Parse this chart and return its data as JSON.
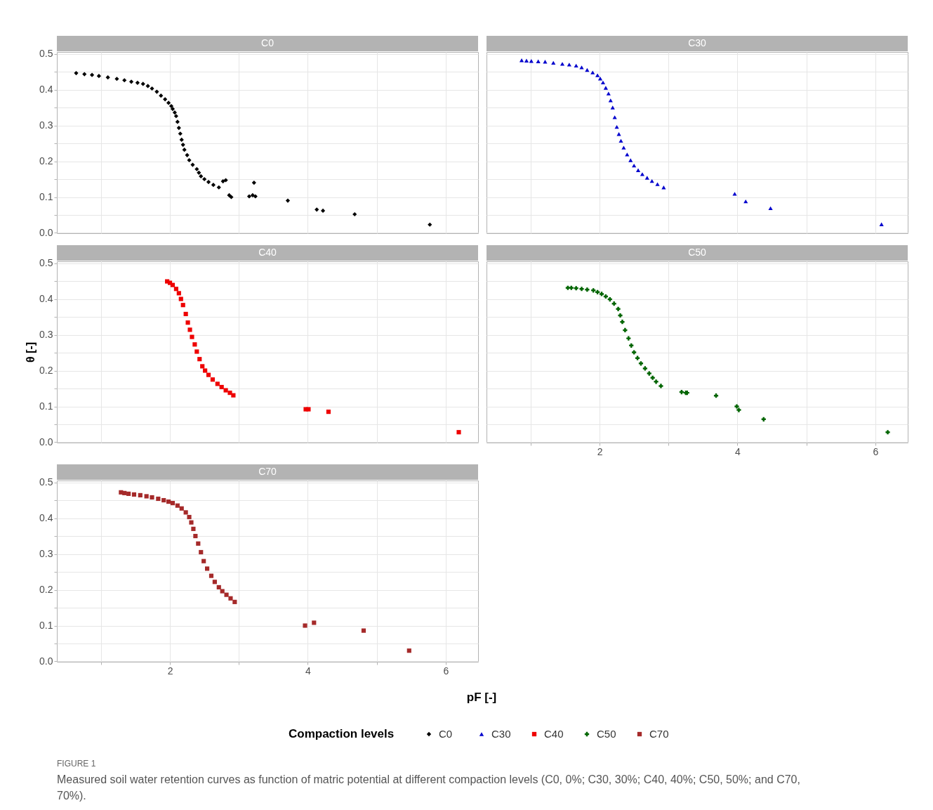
{
  "chart_data": [
    {
      "type": "scatter",
      "title": "C0",
      "marker": "diamond",
      "grid": true,
      "tick_labels": "y",
      "xlim": [
        0.36,
        6.47
      ],
      "ylim": [
        -0.001,
        0.505
      ],
      "xticks": [
        {
          "value": 1,
          "label": null
        },
        2,
        {
          "value": 3,
          "label": null
        },
        4,
        {
          "value": 5,
          "label": null
        },
        6
      ],
      "yticks": [
        {
          "value": 0,
          "label": "0.0"
        },
        {
          "value": 0.05,
          "label": null
        },
        {
          "value": 0.1,
          "label": "0.1"
        },
        {
          "value": 0.15,
          "label": null
        },
        {
          "value": 0.2,
          "label": "0.2"
        },
        {
          "value": 0.25,
          "label": null
        },
        {
          "value": 0.3,
          "label": "0.3"
        },
        {
          "value": 0.35,
          "label": null
        },
        {
          "value": 0.4,
          "label": "0.4"
        },
        {
          "value": 0.45,
          "label": null
        },
        {
          "value": 0.5,
          "label": "0.5"
        }
      ],
      "series": [
        {
          "name": "C0",
          "color": "#000000",
          "x": [
            0.64,
            0.76,
            0.87,
            0.97,
            1.1,
            1.23,
            1.34,
            1.44,
            1.53,
            1.61,
            1.68,
            1.74,
            1.81,
            1.87,
            1.93,
            1.98,
            2.02,
            2.04,
            2.07,
            2.09,
            2.11,
            2.13,
            2.15,
            2.17,
            2.19,
            2.21,
            2.25,
            2.28,
            2.33,
            2.39,
            2.42,
            2.45,
            2.5,
            2.56,
            2.63,
            2.71,
            2.77,
            2.81,
            2.86,
            2.89,
            3.15,
            3.2,
            3.24,
            3.22,
            3.71,
            4.13,
            4.22,
            4.68,
            5.77
          ],
          "values": [
            0.446,
            0.443,
            0.441,
            0.438,
            0.434,
            0.43,
            0.426,
            0.422,
            0.419,
            0.416,
            0.41,
            0.403,
            0.394,
            0.383,
            0.373,
            0.363,
            0.354,
            0.346,
            0.336,
            0.326,
            0.31,
            0.293,
            0.277,
            0.26,
            0.246,
            0.232,
            0.217,
            0.203,
            0.19,
            0.178,
            0.168,
            0.158,
            0.15,
            0.142,
            0.134,
            0.127,
            0.144,
            0.147,
            0.105,
            0.1,
            0.102,
            0.105,
            0.102,
            0.14,
            0.09,
            0.065,
            0.062,
            0.052,
            0.023
          ]
        }
      ]
    },
    {
      "type": "scatter",
      "title": "C30",
      "marker": "triangle",
      "grid": true,
      "tick_labels": false,
      "xlim": [
        0.36,
        6.47
      ],
      "ylim": [
        -0.001,
        0.505
      ],
      "xticks": [
        {
          "value": 1,
          "label": null
        },
        2,
        {
          "value": 3,
          "label": null
        },
        4,
        {
          "value": 5,
          "label": null
        },
        6
      ],
      "yticks": [
        {
          "value": 0,
          "label": null
        },
        {
          "value": 0.05,
          "label": null
        },
        {
          "value": 0.1,
          "label": null
        },
        {
          "value": 0.15,
          "label": null
        },
        {
          "value": 0.2,
          "label": null
        },
        {
          "value": 0.25,
          "label": null
        },
        {
          "value": 0.3,
          "label": null
        },
        {
          "value": 0.35,
          "label": null
        },
        {
          "value": 0.4,
          "label": null
        },
        {
          "value": 0.45,
          "label": null
        },
        {
          "value": 0.5,
          "label": null
        }
      ],
      "series": [
        {
          "name": "C30",
          "color": "#0000cd",
          "x": [
            0.87,
            0.94,
            1.01,
            1.11,
            1.21,
            1.33,
            1.46,
            1.56,
            1.66,
            1.74,
            1.82,
            1.9,
            1.97,
            2.01,
            2.05,
            2.09,
            2.13,
            2.16,
            2.19,
            2.22,
            2.25,
            2.28,
            2.31,
            2.35,
            2.4,
            2.45,
            2.5,
            2.56,
            2.62,
            2.69,
            2.76,
            2.84,
            2.93,
            3.96,
            4.12,
            4.48,
            6.09
          ],
          "values": [
            0.482,
            0.481,
            0.48,
            0.479,
            0.478,
            0.475,
            0.472,
            0.47,
            0.467,
            0.462,
            0.455,
            0.448,
            0.44,
            0.431,
            0.42,
            0.405,
            0.389,
            0.37,
            0.35,
            0.323,
            0.296,
            0.276,
            0.257,
            0.238,
            0.219,
            0.203,
            0.188,
            0.175,
            0.164,
            0.154,
            0.145,
            0.136,
            0.127,
            0.109,
            0.088,
            0.069,
            0.024
          ]
        }
      ]
    },
    {
      "type": "scatter",
      "title": "C40",
      "ylabel": "θ [-]",
      "marker": "square",
      "grid": true,
      "tick_labels": "y",
      "xlim": [
        0.36,
        6.47
      ],
      "ylim": [
        -0.001,
        0.505
      ],
      "xticks": [
        {
          "value": 1,
          "label": null
        },
        2,
        {
          "value": 3,
          "label": null
        },
        4,
        {
          "value": 5,
          "label": null
        },
        6
      ],
      "yticks": [
        {
          "value": 0,
          "label": "0.0"
        },
        {
          "value": 0.05,
          "label": null
        },
        {
          "value": 0.1,
          "label": "0.1"
        },
        {
          "value": 0.15,
          "label": null
        },
        {
          "value": 0.2,
          "label": "0.2"
        },
        {
          "value": 0.25,
          "label": null
        },
        {
          "value": 0.3,
          "label": "0.3"
        },
        {
          "value": 0.35,
          "label": null
        },
        {
          "value": 0.4,
          "label": "0.4"
        },
        {
          "value": 0.45,
          "label": null
        },
        {
          "value": 0.5,
          "label": "0.5"
        }
      ],
      "series": [
        {
          "name": "C40",
          "color": "#ee0000",
          "x": [
            1.96,
            2.0,
            2.04,
            2.09,
            2.13,
            2.16,
            2.19,
            2.23,
            2.26,
            2.29,
            2.32,
            2.36,
            2.39,
            2.43,
            2.47,
            2.51,
            2.56,
            2.62,
            2.69,
            2.75,
            2.81,
            2.87,
            2.92,
            3.97,
            4.01,
            4.3,
            6.19
          ],
          "values": [
            0.449,
            0.445,
            0.439,
            0.428,
            0.416,
            0.4,
            0.383,
            0.358,
            0.334,
            0.314,
            0.294,
            0.273,
            0.253,
            0.232,
            0.212,
            0.2,
            0.188,
            0.175,
            0.163,
            0.154,
            0.145,
            0.138,
            0.131,
            0.092,
            0.092,
            0.085,
            0.028
          ]
        }
      ]
    },
    {
      "type": "scatter",
      "title": "C50",
      "marker": "cross",
      "grid": true,
      "tick_labels": "x",
      "xlim": [
        0.36,
        6.47
      ],
      "ylim": [
        -0.001,
        0.505
      ],
      "xticks": [
        {
          "value": 1,
          "label": null
        },
        2,
        {
          "value": 3,
          "label": null
        },
        4,
        {
          "value": 5,
          "label": null
        },
        6
      ],
      "yticks": [
        {
          "value": 0,
          "label": null
        },
        {
          "value": 0.05,
          "label": null
        },
        {
          "value": 0.1,
          "label": null
        },
        {
          "value": 0.15,
          "label": null
        },
        {
          "value": 0.2,
          "label": null
        },
        {
          "value": 0.25,
          "label": null
        },
        {
          "value": 0.3,
          "label": null
        },
        {
          "value": 0.35,
          "label": null
        },
        {
          "value": 0.4,
          "label": null
        },
        {
          "value": 0.45,
          "label": null
        },
        {
          "value": 0.5,
          "label": null
        }
      ],
      "series": [
        {
          "name": "C50",
          "color": "#006400",
          "x": [
            1.54,
            1.59,
            1.66,
            1.74,
            1.82,
            1.91,
            1.97,
            2.03,
            2.09,
            2.15,
            2.21,
            2.27,
            2.3,
            2.33,
            2.37,
            2.42,
            2.46,
            2.5,
            2.55,
            2.6,
            2.66,
            2.72,
            2.77,
            2.82,
            2.89,
            3.19,
            3.25,
            3.27,
            3.69,
            3.99,
            4.02,
            4.38,
            6.18
          ],
          "values": [
            0.431,
            0.431,
            0.43,
            0.428,
            0.426,
            0.424,
            0.419,
            0.414,
            0.407,
            0.399,
            0.387,
            0.372,
            0.354,
            0.336,
            0.313,
            0.29,
            0.27,
            0.251,
            0.235,
            0.22,
            0.206,
            0.192,
            0.18,
            0.169,
            0.157,
            0.14,
            0.138,
            0.138,
            0.13,
            0.1,
            0.09,
            0.064,
            0.028
          ]
        }
      ]
    },
    {
      "type": "scatter",
      "title": "C70",
      "xlabel": "pF [-]",
      "legend": "bottom",
      "legend_title": "Compaction levels",
      "marker": "square",
      "grid": true,
      "xlim": [
        0.36,
        6.47
      ],
      "ylim": [
        -0.001,
        0.505
      ],
      "xticks": [
        {
          "value": 1,
          "label": null
        },
        2,
        {
          "value": 3,
          "label": null
        },
        4,
        {
          "value": 5,
          "label": null
        },
        6
      ],
      "yticks": [
        {
          "value": 0,
          "label": "0.0"
        },
        {
          "value": 0.05,
          "label": null
        },
        {
          "value": 0.1,
          "label": "0.1"
        },
        {
          "value": 0.15,
          "label": null
        },
        {
          "value": 0.2,
          "label": "0.2"
        },
        {
          "value": 0.25,
          "label": null
        },
        {
          "value": 0.3,
          "label": "0.3"
        },
        {
          "value": 0.35,
          "label": null
        },
        {
          "value": 0.4,
          "label": "0.4"
        },
        {
          "value": 0.45,
          "label": null
        },
        {
          "value": 0.5,
          "label": "0.5"
        }
      ],
      "annotations": [
        "FIGURE 1",
        "Measured soil water retention curves as function of matric potential at different compaction levels (C0, 0%; C30, 30%; C40, 40%; C50, 50%; and C70, 70%)."
      ],
      "series": [
        {
          "name": "C70",
          "color": "#a52a2a",
          "x": [
            1.29,
            1.34,
            1.4,
            1.48,
            1.57,
            1.66,
            1.74,
            1.83,
            1.91,
            1.98,
            2.04,
            2.11,
            2.17,
            2.23,
            2.28,
            2.31,
            2.34,
            2.37,
            2.41,
            2.45,
            2.49,
            2.54,
            2.6,
            2.65,
            2.71,
            2.76,
            2.82,
            2.88,
            2.94,
            3.96,
            4.09,
            4.81,
            5.47
          ],
          "values": [
            0.472,
            0.47,
            0.468,
            0.466,
            0.464,
            0.461,
            0.458,
            0.454,
            0.45,
            0.446,
            0.442,
            0.435,
            0.427,
            0.416,
            0.403,
            0.388,
            0.37,
            0.35,
            0.329,
            0.305,
            0.28,
            0.259,
            0.239,
            0.222,
            0.207,
            0.196,
            0.186,
            0.176,
            0.166,
            0.1,
            0.108,
            0.086,
            0.03
          ]
        }
      ]
    }
  ]
}
